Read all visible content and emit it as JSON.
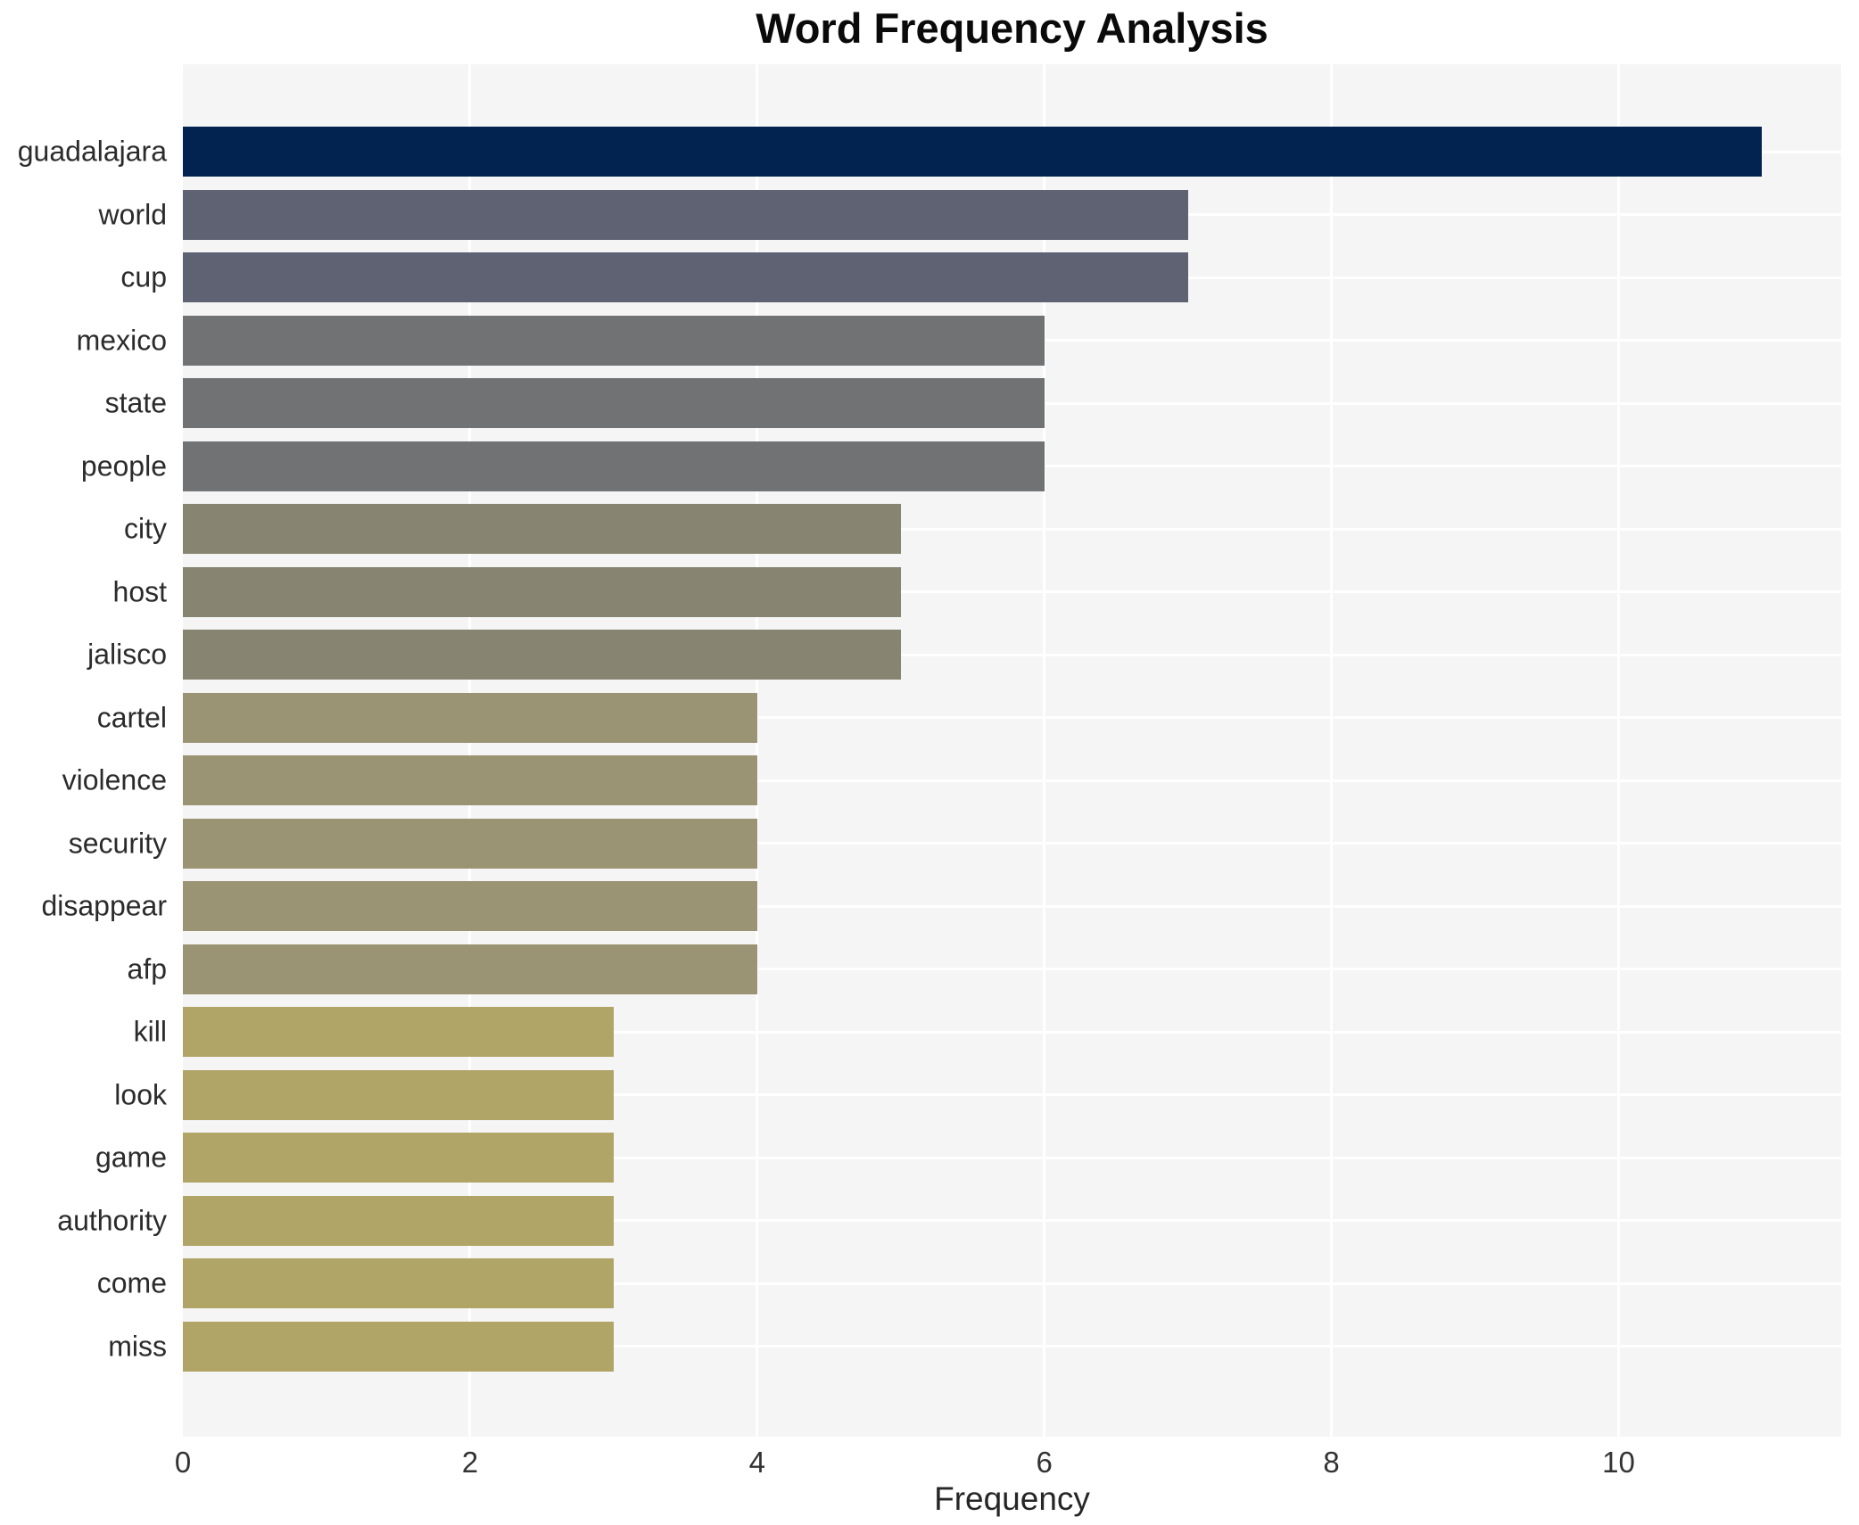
{
  "chart_data": {
    "type": "bar",
    "orientation": "horizontal",
    "title": "Word Frequency Analysis",
    "xlabel": "Frequency",
    "ylabel": "",
    "categories": [
      "guadalajara",
      "world",
      "cup",
      "mexico",
      "state",
      "people",
      "city",
      "host",
      "jalisco",
      "cartel",
      "violence",
      "security",
      "disappear",
      "afp",
      "kill",
      "look",
      "game",
      "authority",
      "come",
      "miss"
    ],
    "values": [
      11,
      7,
      7,
      6,
      6,
      6,
      5,
      5,
      5,
      4,
      4,
      4,
      4,
      4,
      3,
      3,
      3,
      3,
      3,
      3
    ],
    "bar_colors": [
      "#022350",
      "#5e6272",
      "#5e6272",
      "#717274",
      "#717274",
      "#717274",
      "#878471",
      "#878471",
      "#878471",
      "#9b9474",
      "#9b9474",
      "#9b9474",
      "#9b9474",
      "#9b9474",
      "#b1a467",
      "#b1a467",
      "#b1a467",
      "#b1a467",
      "#b1a467",
      "#b1a467"
    ],
    "x_ticks": [
      0,
      2,
      4,
      6,
      8,
      10
    ],
    "xlim": [
      0,
      11.55
    ],
    "grid": true,
    "legend": null,
    "plot_bg": "#f5f5f6",
    "grid_color": "#ffffff",
    "title_color": "#0a0a0a",
    "tick_color": "#333333",
    "label_color": "#2b2b2b"
  }
}
